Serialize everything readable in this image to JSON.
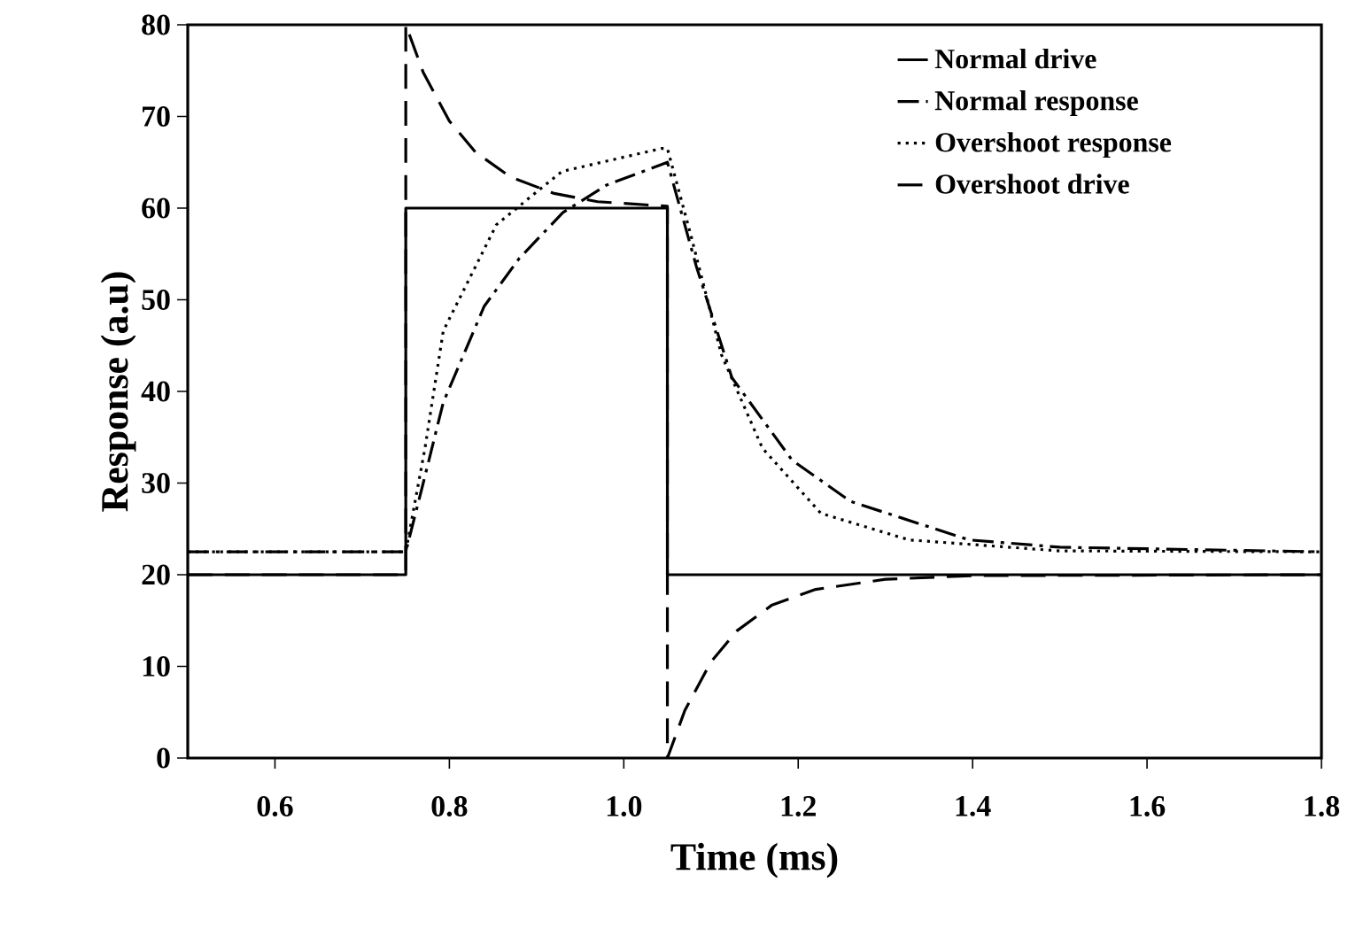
{
  "chart_data": {
    "type": "line",
    "xlabel": "Time (ms)",
    "ylabel": "Response (a.u)",
    "xlim": [
      0.5,
      1.8
    ],
    "ylim": [
      0,
      80
    ],
    "xticks": [
      {
        "value": 0.6,
        "label": "0.6"
      },
      {
        "value": 0.8,
        "label": "0.8"
      },
      {
        "value": 1.0,
        "label": "1.0"
      },
      {
        "value": 1.2,
        "label": "1.2"
      },
      {
        "value": 1.4,
        "label": "1.4"
      },
      {
        "value": 1.6,
        "label": "1.6"
      },
      {
        "value": 1.8,
        "label": "1.8"
      }
    ],
    "yticks": [
      0,
      10,
      20,
      30,
      40,
      50,
      60,
      70,
      80
    ],
    "legend": "top right",
    "grid": false,
    "series": [
      {
        "name": "Normal drive",
        "color": "#000000",
        "line_style": "solid",
        "x": [
          0.5,
          0.75,
          0.75,
          1.05,
          1.05,
          1.8
        ],
        "values": [
          20,
          20,
          60,
          60,
          20,
          20
        ]
      },
      {
        "name": "Normal response",
        "color": "#000000",
        "line_style": "dashdot",
        "x": [
          0.5,
          0.75,
          0.77,
          0.793,
          0.84,
          0.88,
          0.93,
          0.98,
          1.05,
          1.083,
          1.124,
          1.193,
          1.26,
          1.396,
          1.5,
          1.8
        ],
        "values": [
          22.5,
          22.5,
          30,
          38.8,
          49.3,
          54.5,
          59.5,
          62.5,
          65,
          53.7,
          41.5,
          32.5,
          28,
          23.8,
          23,
          22.5
        ]
      },
      {
        "name": "Overshoot response",
        "color": "#000000",
        "line_style": "dotted",
        "x": [
          0.5,
          0.75,
          0.772,
          0.793,
          0.854,
          0.929,
          1.043,
          1.05,
          1.077,
          1.112,
          1.159,
          1.226,
          1.327,
          1.5,
          1.8
        ],
        "values": [
          22.5,
          22.5,
          33.8,
          46.6,
          58.2,
          64,
          66.5,
          66.5,
          57,
          44,
          33.8,
          26.7,
          23.8,
          22.6,
          22.5
        ]
      },
      {
        "name": "Overshoot drive",
        "color": "#000000",
        "line_style": "dashed",
        "x": [
          0.5,
          0.75,
          0.75,
          0.77,
          0.8,
          0.83,
          0.87,
          0.92,
          0.97,
          1.05,
          1.05,
          1.07,
          1.1,
          1.13,
          1.17,
          1.22,
          1.3,
          1.4,
          1.8
        ],
        "values": [
          20,
          20,
          80,
          74.8,
          69.5,
          66.1,
          63.4,
          61.6,
          60.7,
          60.2,
          0,
          5.2,
          10.5,
          13.9,
          16.7,
          18.4,
          19.5,
          19.9,
          20
        ]
      }
    ]
  }
}
